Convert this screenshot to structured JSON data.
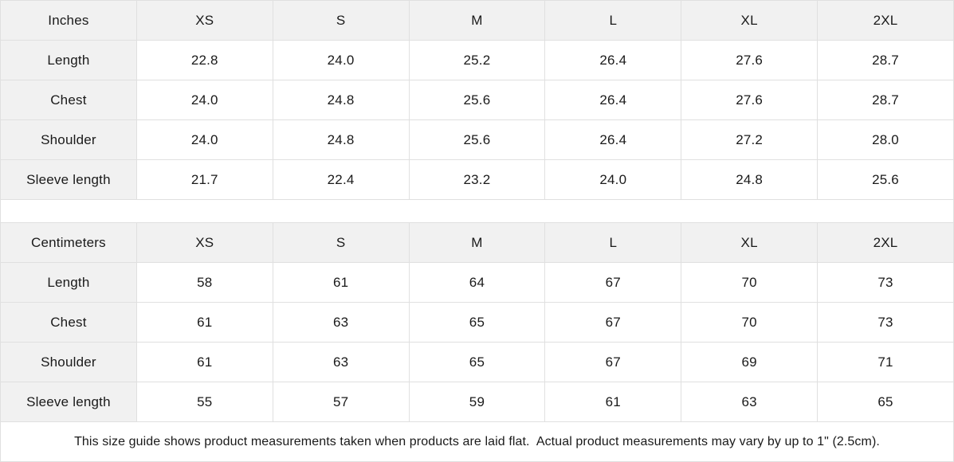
{
  "theme": {
    "header_fill": "#f1f1f1",
    "border_color": "#e0e0e0",
    "cell_fill": "#ffffff",
    "text_color": "#1a1a1a"
  },
  "tables": [
    {
      "unit_label": "Inches",
      "size_headers": [
        "XS",
        "S",
        "M",
        "L",
        "XL",
        "2XL"
      ],
      "rows": [
        {
          "label": "Length",
          "values": [
            "22.8",
            "24.0",
            "25.2",
            "26.4",
            "27.6",
            "28.7"
          ]
        },
        {
          "label": "Chest",
          "values": [
            "24.0",
            "24.8",
            "25.6",
            "26.4",
            "27.6",
            "28.7"
          ]
        },
        {
          "label": "Shoulder",
          "values": [
            "24.0",
            "24.8",
            "25.6",
            "26.4",
            "27.2",
            "28.0"
          ]
        },
        {
          "label": "Sleeve length",
          "values": [
            "21.7",
            "22.4",
            "23.2",
            "24.0",
            "24.8",
            "25.6"
          ]
        }
      ]
    },
    {
      "unit_label": "Centimeters",
      "size_headers": [
        "XS",
        "S",
        "M",
        "L",
        "XL",
        "2XL"
      ],
      "rows": [
        {
          "label": "Length",
          "values": [
            "58",
            "61",
            "64",
            "67",
            "70",
            "73"
          ]
        },
        {
          "label": "Chest",
          "values": [
            "61",
            "63",
            "65",
            "67",
            "70",
            "73"
          ]
        },
        {
          "label": "Shoulder",
          "values": [
            "61",
            "63",
            "65",
            "67",
            "69",
            "71"
          ]
        },
        {
          "label": "Sleeve length",
          "values": [
            "55",
            "57",
            "59",
            "61",
            "63",
            "65"
          ]
        }
      ]
    }
  ],
  "footer": {
    "note": "This size guide shows product measurements taken when products are laid flat.  Actual product measurements may vary by up to 1\" (2.5cm)."
  }
}
